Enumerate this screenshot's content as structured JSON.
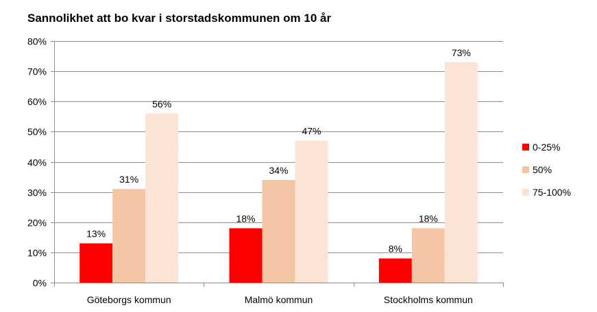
{
  "chart_data": {
    "type": "bar",
    "title": "Sannolikhet att bo kvar i storstadskommunen om 10 år",
    "categories": [
      "Göteborgs kommun",
      "Malmö kommun",
      "Stockholms kommun"
    ],
    "series": [
      {
        "name": "0-25%",
        "color": "#ff0000",
        "values": [
          13,
          18,
          8
        ],
        "labels": [
          "13%",
          "18%",
          "8%"
        ]
      },
      {
        "name": "50%",
        "color": "#f5c6a5",
        "values": [
          31,
          34,
          18
        ],
        "labels": [
          "31%",
          "34%",
          "18%"
        ]
      },
      {
        "name": "75-100%",
        "color": "#fbe4d5",
        "values": [
          56,
          47,
          73
        ],
        "labels": [
          "56%",
          "47%",
          "73%"
        ]
      }
    ],
    "xlabel": "",
    "ylabel": "",
    "ylim": [
      0,
      80
    ],
    "yticks": [
      0,
      10,
      20,
      30,
      40,
      50,
      60,
      70,
      80
    ],
    "ytick_labels": [
      "0%",
      "10%",
      "20%",
      "30%",
      "40%",
      "50%",
      "60%",
      "70%",
      "80%"
    ],
    "grid": true,
    "legend": "right"
  }
}
